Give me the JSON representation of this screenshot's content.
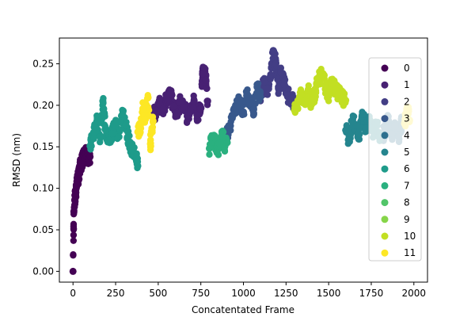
{
  "chart_data": {
    "type": "scatter",
    "title": "",
    "xlabel": "Concatentated Frame",
    "ylabel": "RMSD (nm)",
    "xlim": [
      -80,
      2080
    ],
    "ylim": [
      -0.013,
      0.281
    ],
    "xticks": [
      0,
      250,
      500,
      750,
      1000,
      1250,
      1500,
      1750,
      2000
    ],
    "xtick_labels": [
      "0",
      "250",
      "500",
      "750",
      "1000",
      "1250",
      "1500",
      "1750",
      "2000"
    ],
    "yticks": [
      0.0,
      0.05,
      0.1,
      0.15,
      0.2,
      0.25
    ],
    "ytick_labels": [
      "0.00",
      "0.05",
      "0.10",
      "0.15",
      "0.20",
      "0.25"
    ],
    "grid": false,
    "legend": {
      "placement": "right",
      "entries": [
        "0",
        "1",
        "2",
        "3",
        "4",
        "5",
        "6",
        "7",
        "8",
        "9",
        "10",
        "11"
      ]
    },
    "series": [
      {
        "name": "0",
        "color": "#440154",
        "x": [
          0,
          5,
          10,
          15,
          20,
          25,
          30,
          35,
          40,
          45,
          50,
          55,
          60,
          65,
          70,
          75,
          80,
          85,
          90,
          95,
          100
        ],
        "y": [
          0.0,
          0.072,
          0.086,
          0.094,
          0.101,
          0.108,
          0.112,
          0.118,
          0.124,
          0.128,
          0.131,
          0.134,
          0.136,
          0.139,
          0.137,
          0.141,
          0.138,
          0.142,
          0.136,
          0.14,
          0.138
        ]
      },
      {
        "name": "1",
        "color": "#482173",
        "x": [
          470,
          490,
          510,
          530,
          550,
          570,
          590,
          610,
          630,
          650,
          670,
          690,
          710,
          730,
          750,
          760,
          770,
          780,
          790
        ],
        "y": [
          0.188,
          0.193,
          0.201,
          0.196,
          0.209,
          0.214,
          0.199,
          0.191,
          0.203,
          0.198,
          0.187,
          0.192,
          0.205,
          0.188,
          0.196,
          0.238,
          0.245,
          0.23,
          0.205
        ]
      },
      {
        "name": "2",
        "color": "#433e85",
        "x": [
          1100,
          1120,
          1140,
          1160,
          1175,
          1190,
          1205,
          1220,
          1240,
          1260,
          1280,
          1300
        ],
        "y": [
          0.212,
          0.228,
          0.22,
          0.237,
          0.266,
          0.25,
          0.222,
          0.24,
          0.225,
          0.212,
          0.208,
          0.202
        ]
      },
      {
        "name": "3",
        "color": "#38588c",
        "x": [
          900,
          920,
          940,
          960,
          980,
          1000,
          1020,
          1040,
          1060,
          1080,
          1100
        ],
        "y": [
          0.162,
          0.176,
          0.188,
          0.198,
          0.205,
          0.192,
          0.214,
          0.203,
          0.195,
          0.222,
          0.21
        ]
      },
      {
        "name": "4",
        "color": "#2d708e",
        "x": [
          1810,
          1830,
          1850,
          1870,
          1890,
          1910,
          1930
        ],
        "y": [
          0.158,
          0.171,
          0.182,
          0.166,
          0.175,
          0.162,
          0.18
        ]
      },
      {
        "name": "5",
        "color": "#25858e",
        "x": [
          1600,
          1620,
          1640,
          1660,
          1680,
          1700,
          1720,
          1740,
          1760,
          1780,
          1800
        ],
        "y": [
          0.17,
          0.158,
          0.182,
          0.176,
          0.165,
          0.189,
          0.172,
          0.183,
          0.17,
          0.176,
          0.166
        ]
      },
      {
        "name": "6",
        "color": "#1e9b8a",
        "x": [
          100,
          120,
          140,
          160,
          175,
          190,
          210,
          230,
          250,
          270,
          290,
          310,
          330,
          350,
          370,
          380
        ],
        "y": [
          0.151,
          0.167,
          0.181,
          0.162,
          0.205,
          0.172,
          0.158,
          0.166,
          0.176,
          0.162,
          0.189,
          0.176,
          0.155,
          0.146,
          0.138,
          0.127
        ]
      },
      {
        "name": "7",
        "color": "#2ab07f",
        "x": [
          800,
          815,
          830,
          845,
          860,
          875,
          890,
          905
        ],
        "y": [
          0.148,
          0.158,
          0.161,
          0.143,
          0.154,
          0.166,
          0.15,
          0.155
        ]
      },
      {
        "name": "8",
        "color": "#52c569",
        "x": [],
        "y": []
      },
      {
        "name": "9",
        "color": "#86d549",
        "x": [],
        "y": []
      },
      {
        "name": "10",
        "color": "#c2df23",
        "x": [
          1300,
          1320,
          1340,
          1360,
          1380,
          1400,
          1420,
          1440,
          1460,
          1480,
          1500,
          1520,
          1540,
          1560,
          1580,
          1600
        ],
        "y": [
          0.194,
          0.203,
          0.212,
          0.206,
          0.219,
          0.201,
          0.215,
          0.231,
          0.237,
          0.224,
          0.213,
          0.226,
          0.218,
          0.214,
          0.209,
          0.206
        ]
      },
      {
        "name": "11",
        "color": "#fde725",
        "x": [
          380,
          395,
          410,
          425,
          440,
          455,
          470,
          1945,
          1955,
          1965,
          1975
        ],
        "y": [
          0.168,
          0.175,
          0.196,
          0.183,
          0.209,
          0.154,
          0.181,
          0.178,
          0.186,
          0.192,
          0.182
        ]
      }
    ]
  }
}
